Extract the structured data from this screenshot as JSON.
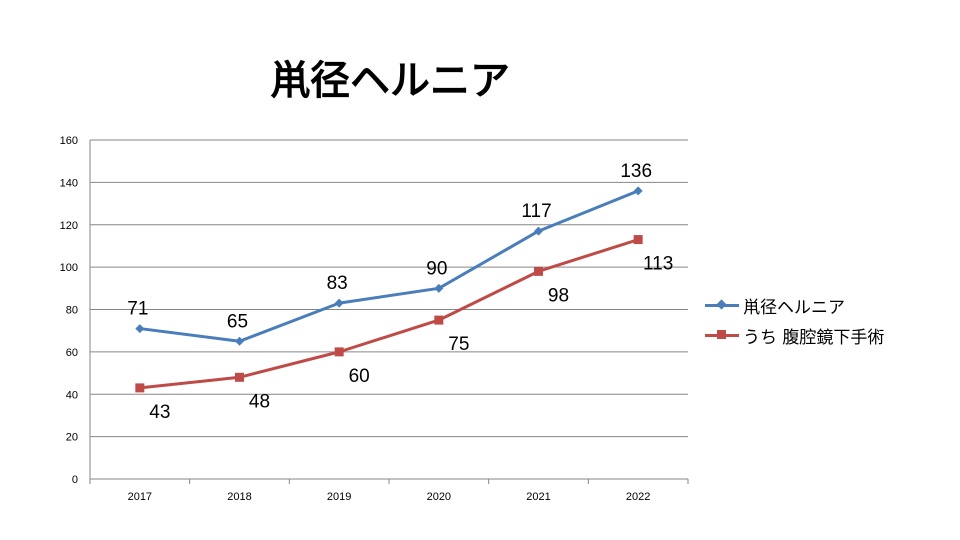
{
  "chart_data": {
    "type": "line",
    "title": "鼡径ヘルニア",
    "categories": [
      "2017",
      "2018",
      "2019",
      "2020",
      "2021",
      "2022"
    ],
    "ylim": [
      0,
      160
    ],
    "yticks": [
      0,
      20,
      40,
      60,
      80,
      100,
      120,
      140,
      160
    ],
    "grid": true,
    "legend_position": "right",
    "series": [
      {
        "name": "鼡径ヘルニア",
        "values": [
          71,
          65,
          83,
          90,
          117,
          136
        ],
        "color": "#4a7ebb",
        "marker": "diamond",
        "label_position": "above"
      },
      {
        "name": "うち 腹腔鏡下手術",
        "values": [
          43,
          48,
          60,
          75,
          98,
          113
        ],
        "color": "#be4b48",
        "marker": "square",
        "label_position": "below"
      }
    ]
  }
}
